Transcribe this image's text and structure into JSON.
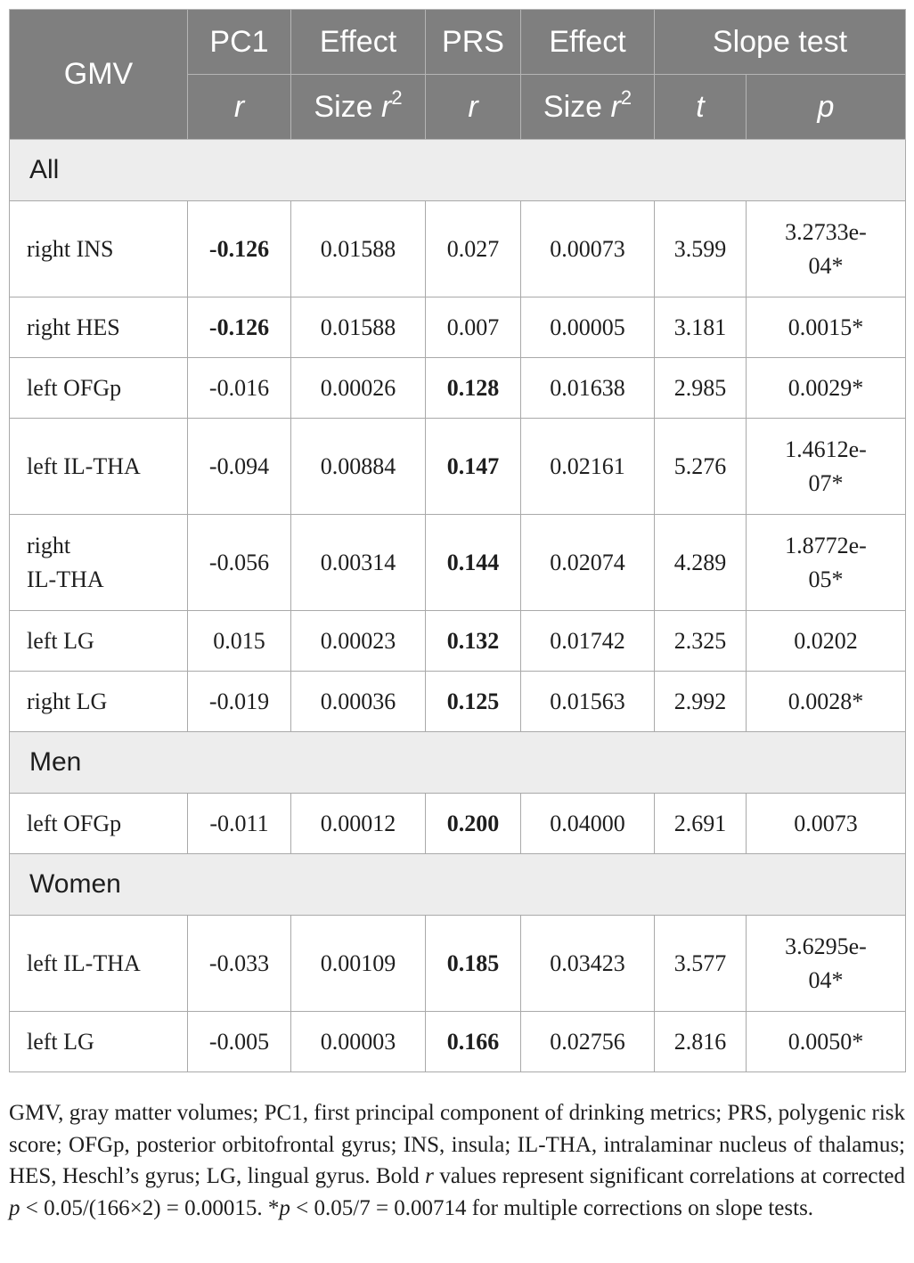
{
  "header": {
    "gmv": "GMV",
    "pc1": "PC1",
    "effect1": "Effect",
    "prs": "PRS",
    "effect2": "Effect",
    "slope_test": "Slope test",
    "pc1_r": "r",
    "size1_text": "Size ",
    "size1_r": "r",
    "size1_exp": "2",
    "prs_r": "r",
    "size2_text": "Size ",
    "size2_r": "r",
    "size2_exp": "2",
    "t": "t",
    "p": "p"
  },
  "sections": [
    {
      "name": "All",
      "rows": [
        {
          "label": "right INS",
          "pc1": "-0.126",
          "es1": "0.01588",
          "prs": "0.027",
          "es2": "0.00073",
          "t": "3.599",
          "p1": "3.2733e-",
          "p2": "04*",
          "pc1_bold": true,
          "prs_bold": false
        },
        {
          "label": "right HES",
          "pc1": "-0.126",
          "es1": "0.01588",
          "prs": "0.007",
          "es2": "0.00005",
          "t": "3.181",
          "p1": "0.0015*",
          "p2": "",
          "pc1_bold": true,
          "prs_bold": false
        },
        {
          "label": "left OFGp",
          "pc1": "-0.016",
          "es1": "0.00026",
          "prs": "0.128",
          "es2": "0.01638",
          "t": "2.985",
          "p1": "0.0029*",
          "p2": "",
          "pc1_bold": false,
          "prs_bold": true
        },
        {
          "label": "left IL-THA",
          "pc1": "-0.094",
          "es1": "0.00884",
          "prs": "0.147",
          "es2": "0.02161",
          "t": "5.276",
          "p1": "1.4612e-",
          "p2": "07*",
          "pc1_bold": false,
          "prs_bold": true
        },
        {
          "label": "right",
          "label2": "IL-THA",
          "pc1": "-0.056",
          "es1": "0.00314",
          "prs": "0.144",
          "es2": "0.02074",
          "t": "4.289",
          "p1": "1.8772e-",
          "p2": "05*",
          "pc1_bold": false,
          "prs_bold": true
        },
        {
          "label": "left LG",
          "pc1": "0.015",
          "es1": "0.00023",
          "prs": "0.132",
          "es2": "0.01742",
          "t": "2.325",
          "p1": "0.0202",
          "p2": "",
          "pc1_bold": false,
          "prs_bold": true
        },
        {
          "label": "right LG",
          "pc1": "-0.019",
          "es1": "0.00036",
          "prs": "0.125",
          "es2": "0.01563",
          "t": "2.992",
          "p1": "0.0028*",
          "p2": "",
          "pc1_bold": false,
          "prs_bold": true
        }
      ]
    },
    {
      "name": "Men",
      "rows": [
        {
          "label": "left OFGp",
          "pc1": "-0.011",
          "es1": "0.00012",
          "prs": "0.200",
          "es2": "0.04000",
          "t": "2.691",
          "p1": "0.0073",
          "p2": "",
          "pc1_bold": false,
          "prs_bold": true
        }
      ]
    },
    {
      "name": "Women",
      "rows": [
        {
          "label": "left IL-THA",
          "pc1": "-0.033",
          "es1": "0.00109",
          "prs": "0.185",
          "es2": "0.03423",
          "t": "3.577",
          "p1": "3.6295e-",
          "p2": "04*",
          "pc1_bold": false,
          "prs_bold": true
        },
        {
          "label": "left LG",
          "pc1": "-0.005",
          "es1": "0.00003",
          "prs": "0.166",
          "es2": "0.02756",
          "t": "2.816",
          "p1": "0.0050*",
          "p2": "",
          "pc1_bold": false,
          "prs_bold": true
        }
      ]
    }
  ],
  "footnote": {
    "part1": "GMV, gray matter volumes; PC1, first principal component of drinking metrics; PRS, polygenic risk score; OFGp, posterior orbitofrontal gyrus; INS, insula; IL-THA, intralaminar nucleus of thalamus; HES, Heschl’s gyrus; LG, lingual gyrus. Bold ",
    "r": "r",
    "part2": " values represent significant correlations at corrected ",
    "p1": "p",
    "part3": " < 0.05/(166×2) = 0.00015. *",
    "p2": "p",
    "part4": " < 0.05/7 = 0.00714 for multiple corrections on slope tests."
  }
}
